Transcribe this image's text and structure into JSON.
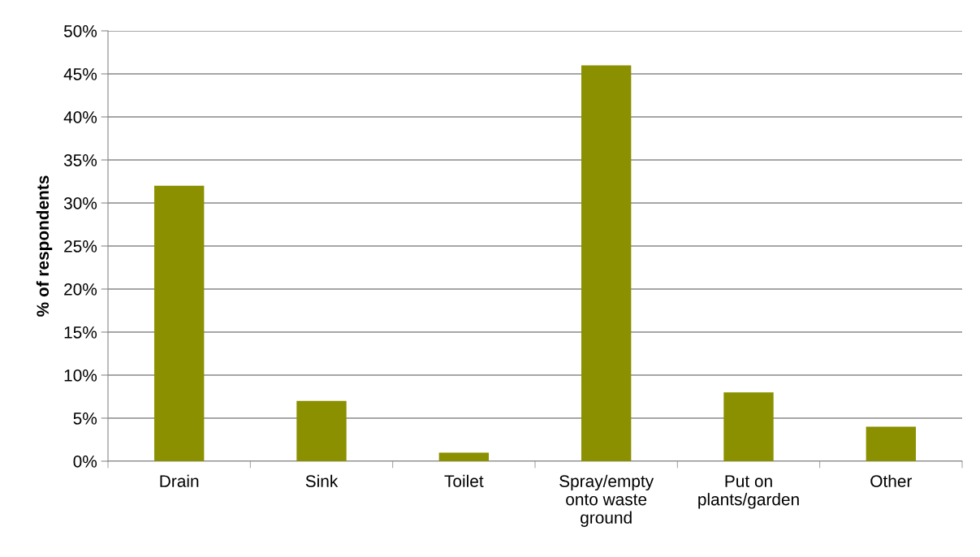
{
  "chart_data": {
    "type": "bar",
    "ylabel": "% of respondents",
    "categories": [
      "Drain",
      "Sink",
      "Toilet",
      "Spray/empty\nonto waste\nground",
      "Put on\nplants/garden",
      "Other"
    ],
    "values": [
      32,
      7,
      1,
      46,
      8,
      4
    ],
    "color": "#8a9000",
    "ylim": [
      0,
      50
    ],
    "yticks": [
      {
        "value": 0,
        "label": "0%"
      },
      {
        "value": 5,
        "label": "5%"
      },
      {
        "value": 10,
        "label": "10%"
      },
      {
        "value": 15,
        "label": "15%"
      },
      {
        "value": 20,
        "label": "20%"
      },
      {
        "value": 25,
        "label": "25%"
      },
      {
        "value": 30,
        "label": "30%"
      },
      {
        "value": 35,
        "label": "35%"
      },
      {
        "value": 40,
        "label": "40%"
      },
      {
        "value": 45,
        "label": "45%"
      },
      {
        "value": 50,
        "label": "50%"
      }
    ],
    "grid": "y",
    "legend": false
  }
}
